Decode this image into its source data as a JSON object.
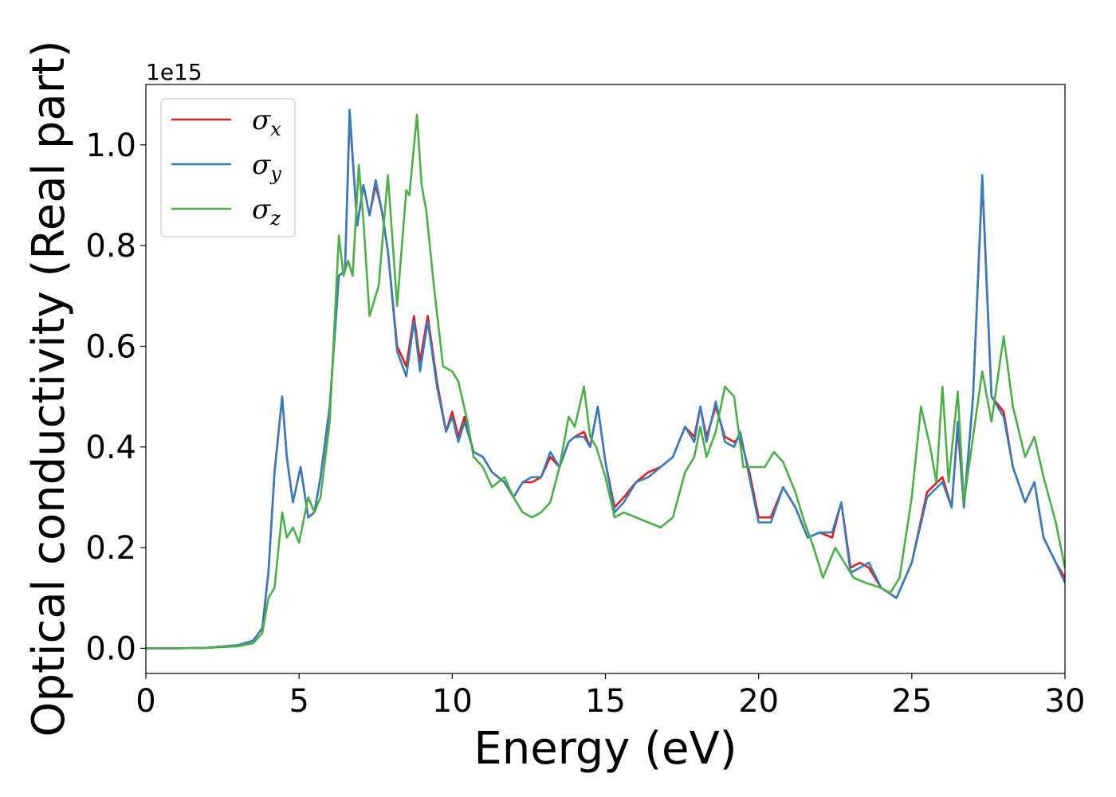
{
  "chart_data": {
    "type": "line",
    "title": "",
    "xlabel": "Energy (eV)",
    "ylabel": "Optical conductivity (Real part)",
    "y_offset_label": "1e15",
    "xlim": [
      0,
      30
    ],
    "ylim": [
      -0.05,
      1.12
    ],
    "xticks": [
      0,
      5,
      10,
      15,
      20,
      25,
      30
    ],
    "xtick_labels": [
      "0",
      "5",
      "10",
      "15",
      "20",
      "25",
      "30"
    ],
    "yticks": [
      0.0,
      0.2,
      0.4,
      0.6,
      0.8,
      1.0
    ],
    "ytick_labels": [
      "0.0",
      "0.2",
      "0.4",
      "0.6",
      "0.8",
      "1.0"
    ],
    "grid": false,
    "legend_position": "top-left",
    "series": [
      {
        "name": "σx",
        "base": "σ",
        "sub": "x",
        "color": "#e41a1c",
        "points": [
          [
            0,
            0
          ],
          [
            1,
            0
          ],
          [
            2,
            0.001
          ],
          [
            3,
            0.006
          ],
          [
            3.5,
            0.015
          ],
          [
            3.8,
            0.04
          ],
          [
            4.0,
            0.15
          ],
          [
            4.2,
            0.35
          ],
          [
            4.45,
            0.5
          ],
          [
            4.6,
            0.38
          ],
          [
            4.8,
            0.29
          ],
          [
            5.05,
            0.36
          ],
          [
            5.3,
            0.26
          ],
          [
            5.5,
            0.27
          ],
          [
            5.7,
            0.34
          ],
          [
            6.0,
            0.48
          ],
          [
            6.3,
            0.74
          ],
          [
            6.5,
            0.75
          ],
          [
            6.65,
            1.06
          ],
          [
            6.9,
            0.84
          ],
          [
            7.1,
            0.92
          ],
          [
            7.3,
            0.86
          ],
          [
            7.5,
            0.92
          ],
          [
            7.7,
            0.87
          ],
          [
            7.9,
            0.79
          ],
          [
            8.2,
            0.6
          ],
          [
            8.5,
            0.56
          ],
          [
            8.75,
            0.66
          ],
          [
            8.95,
            0.57
          ],
          [
            9.2,
            0.66
          ],
          [
            9.5,
            0.53
          ],
          [
            9.8,
            0.43
          ],
          [
            10.0,
            0.47
          ],
          [
            10.2,
            0.42
          ],
          [
            10.4,
            0.46
          ],
          [
            10.7,
            0.39
          ],
          [
            11.0,
            0.38
          ],
          [
            11.3,
            0.35
          ],
          [
            11.7,
            0.33
          ],
          [
            12.0,
            0.3
          ],
          [
            12.3,
            0.33
          ],
          [
            12.6,
            0.33
          ],
          [
            12.9,
            0.34
          ],
          [
            13.2,
            0.38
          ],
          [
            13.5,
            0.36
          ],
          [
            13.8,
            0.41
          ],
          [
            14.0,
            0.42
          ],
          [
            14.3,
            0.43
          ],
          [
            14.5,
            0.4
          ],
          [
            14.75,
            0.48
          ],
          [
            15.0,
            0.37
          ],
          [
            15.3,
            0.28
          ],
          [
            15.6,
            0.3
          ],
          [
            16.0,
            0.33
          ],
          [
            16.4,
            0.35
          ],
          [
            16.8,
            0.36
          ],
          [
            17.2,
            0.38
          ],
          [
            17.6,
            0.44
          ],
          [
            17.9,
            0.42
          ],
          [
            18.1,
            0.48
          ],
          [
            18.3,
            0.42
          ],
          [
            18.6,
            0.48
          ],
          [
            18.9,
            0.42
          ],
          [
            19.2,
            0.41
          ],
          [
            19.4,
            0.42
          ],
          [
            19.7,
            0.35
          ],
          [
            20.0,
            0.26
          ],
          [
            20.4,
            0.26
          ],
          [
            20.8,
            0.32
          ],
          [
            21.2,
            0.28
          ],
          [
            21.6,
            0.22
          ],
          [
            22.0,
            0.23
          ],
          [
            22.4,
            0.22
          ],
          [
            22.7,
            0.29
          ],
          [
            23.0,
            0.16
          ],
          [
            23.3,
            0.17
          ],
          [
            23.6,
            0.16
          ],
          [
            24.0,
            0.12
          ],
          [
            24.5,
            0.1
          ],
          [
            25.0,
            0.17
          ],
          [
            25.5,
            0.31
          ],
          [
            26.0,
            0.34
          ],
          [
            26.3,
            0.28
          ],
          [
            26.5,
            0.44
          ],
          [
            26.7,
            0.28
          ],
          [
            27.0,
            0.5
          ],
          [
            27.3,
            0.93
          ],
          [
            27.6,
            0.5
          ],
          [
            28.0,
            0.47
          ],
          [
            28.3,
            0.36
          ],
          [
            28.7,
            0.29
          ],
          [
            29.0,
            0.33
          ],
          [
            29.3,
            0.22
          ],
          [
            29.7,
            0.17
          ],
          [
            30,
            0.14
          ]
        ]
      },
      {
        "name": "σy",
        "base": "σ",
        "sub": "y",
        "color": "#377eb8",
        "points": [
          [
            0,
            0
          ],
          [
            1,
            0
          ],
          [
            2,
            0.001
          ],
          [
            3,
            0.006
          ],
          [
            3.5,
            0.015
          ],
          [
            3.8,
            0.04
          ],
          [
            4.0,
            0.15
          ],
          [
            4.2,
            0.35
          ],
          [
            4.45,
            0.5
          ],
          [
            4.6,
            0.38
          ],
          [
            4.8,
            0.29
          ],
          [
            5.05,
            0.36
          ],
          [
            5.3,
            0.26
          ],
          [
            5.5,
            0.27
          ],
          [
            5.7,
            0.34
          ],
          [
            6.0,
            0.48
          ],
          [
            6.3,
            0.74
          ],
          [
            6.5,
            0.75
          ],
          [
            6.65,
            1.07
          ],
          [
            6.9,
            0.84
          ],
          [
            7.1,
            0.92
          ],
          [
            7.3,
            0.86
          ],
          [
            7.5,
            0.93
          ],
          [
            7.7,
            0.87
          ],
          [
            7.9,
            0.79
          ],
          [
            8.2,
            0.59
          ],
          [
            8.5,
            0.54
          ],
          [
            8.75,
            0.65
          ],
          [
            8.95,
            0.55
          ],
          [
            9.2,
            0.65
          ],
          [
            9.5,
            0.52
          ],
          [
            9.8,
            0.43
          ],
          [
            10.0,
            0.46
          ],
          [
            10.2,
            0.41
          ],
          [
            10.4,
            0.45
          ],
          [
            10.7,
            0.39
          ],
          [
            11.0,
            0.38
          ],
          [
            11.3,
            0.35
          ],
          [
            11.7,
            0.33
          ],
          [
            12.0,
            0.3
          ],
          [
            12.3,
            0.33
          ],
          [
            12.6,
            0.34
          ],
          [
            12.9,
            0.34
          ],
          [
            13.2,
            0.39
          ],
          [
            13.5,
            0.36
          ],
          [
            13.8,
            0.41
          ],
          [
            14.0,
            0.42
          ],
          [
            14.3,
            0.42
          ],
          [
            14.5,
            0.4
          ],
          [
            14.75,
            0.48
          ],
          [
            15.0,
            0.37
          ],
          [
            15.3,
            0.27
          ],
          [
            15.6,
            0.29
          ],
          [
            16.0,
            0.33
          ],
          [
            16.4,
            0.34
          ],
          [
            16.8,
            0.36
          ],
          [
            17.2,
            0.38
          ],
          [
            17.6,
            0.44
          ],
          [
            17.9,
            0.41
          ],
          [
            18.1,
            0.48
          ],
          [
            18.3,
            0.41
          ],
          [
            18.6,
            0.49
          ],
          [
            18.9,
            0.41
          ],
          [
            19.2,
            0.4
          ],
          [
            19.4,
            0.43
          ],
          [
            19.7,
            0.34
          ],
          [
            20.0,
            0.25
          ],
          [
            20.4,
            0.25
          ],
          [
            20.8,
            0.32
          ],
          [
            21.2,
            0.28
          ],
          [
            21.6,
            0.22
          ],
          [
            22.0,
            0.23
          ],
          [
            22.4,
            0.23
          ],
          [
            22.7,
            0.29
          ],
          [
            23.0,
            0.15
          ],
          [
            23.3,
            0.16
          ],
          [
            23.6,
            0.17
          ],
          [
            24.0,
            0.12
          ],
          [
            24.5,
            0.1
          ],
          [
            25.0,
            0.17
          ],
          [
            25.5,
            0.3
          ],
          [
            26.0,
            0.33
          ],
          [
            26.3,
            0.28
          ],
          [
            26.5,
            0.45
          ],
          [
            26.7,
            0.28
          ],
          [
            27.0,
            0.5
          ],
          [
            27.3,
            0.94
          ],
          [
            27.6,
            0.5
          ],
          [
            28.0,
            0.46
          ],
          [
            28.3,
            0.36
          ],
          [
            28.7,
            0.29
          ],
          [
            29.0,
            0.33
          ],
          [
            29.3,
            0.22
          ],
          [
            29.7,
            0.17
          ],
          [
            30,
            0.13
          ]
        ]
      },
      {
        "name": "σz",
        "base": "σ",
        "sub": "z",
        "color": "#4daf4a",
        "points": [
          [
            0,
            0
          ],
          [
            1,
            0
          ],
          [
            2,
            0.001
          ],
          [
            3,
            0.004
          ],
          [
            3.5,
            0.01
          ],
          [
            3.8,
            0.03
          ],
          [
            4.0,
            0.1
          ],
          [
            4.2,
            0.12
          ],
          [
            4.45,
            0.27
          ],
          [
            4.6,
            0.22
          ],
          [
            4.8,
            0.24
          ],
          [
            5.0,
            0.21
          ],
          [
            5.3,
            0.3
          ],
          [
            5.5,
            0.27
          ],
          [
            5.7,
            0.3
          ],
          [
            6.0,
            0.45
          ],
          [
            6.3,
            0.82
          ],
          [
            6.45,
            0.74
          ],
          [
            6.6,
            0.77
          ],
          [
            6.75,
            0.74
          ],
          [
            6.95,
            0.96
          ],
          [
            7.1,
            0.85
          ],
          [
            7.3,
            0.66
          ],
          [
            7.6,
            0.72
          ],
          [
            7.9,
            0.94
          ],
          [
            8.2,
            0.68
          ],
          [
            8.5,
            0.91
          ],
          [
            8.6,
            0.9
          ],
          [
            8.85,
            1.06
          ],
          [
            9.0,
            0.92
          ],
          [
            9.15,
            0.87
          ],
          [
            9.4,
            0.72
          ],
          [
            9.7,
            0.56
          ],
          [
            10.0,
            0.55
          ],
          [
            10.2,
            0.53
          ],
          [
            10.5,
            0.45
          ],
          [
            10.7,
            0.38
          ],
          [
            11.0,
            0.36
          ],
          [
            11.3,
            0.32
          ],
          [
            11.7,
            0.34
          ],
          [
            12.0,
            0.3
          ],
          [
            12.3,
            0.27
          ],
          [
            12.6,
            0.26
          ],
          [
            12.9,
            0.27
          ],
          [
            13.2,
            0.29
          ],
          [
            13.5,
            0.36
          ],
          [
            13.8,
            0.46
          ],
          [
            14.0,
            0.44
          ],
          [
            14.3,
            0.52
          ],
          [
            14.5,
            0.42
          ],
          [
            14.7,
            0.4
          ],
          [
            15.0,
            0.34
          ],
          [
            15.3,
            0.26
          ],
          [
            15.6,
            0.27
          ],
          [
            16.0,
            0.26
          ],
          [
            16.4,
            0.25
          ],
          [
            16.8,
            0.24
          ],
          [
            17.2,
            0.26
          ],
          [
            17.6,
            0.35
          ],
          [
            17.9,
            0.38
          ],
          [
            18.1,
            0.44
          ],
          [
            18.3,
            0.38
          ],
          [
            18.6,
            0.43
          ],
          [
            18.9,
            0.52
          ],
          [
            19.2,
            0.5
          ],
          [
            19.5,
            0.36
          ],
          [
            19.8,
            0.36
          ],
          [
            20.2,
            0.36
          ],
          [
            20.5,
            0.39
          ],
          [
            20.8,
            0.37
          ],
          [
            21.2,
            0.31
          ],
          [
            21.5,
            0.25
          ],
          [
            21.8,
            0.2
          ],
          [
            22.1,
            0.14
          ],
          [
            22.5,
            0.2
          ],
          [
            22.8,
            0.17
          ],
          [
            23.1,
            0.14
          ],
          [
            23.5,
            0.13
          ],
          [
            24.0,
            0.12
          ],
          [
            24.3,
            0.11
          ],
          [
            24.6,
            0.14
          ],
          [
            25.0,
            0.3
          ],
          [
            25.3,
            0.48
          ],
          [
            25.6,
            0.4
          ],
          [
            25.8,
            0.33
          ],
          [
            26.0,
            0.52
          ],
          [
            26.2,
            0.33
          ],
          [
            26.5,
            0.51
          ],
          [
            26.7,
            0.29
          ],
          [
            27.0,
            0.42
          ],
          [
            27.3,
            0.55
          ],
          [
            27.6,
            0.45
          ],
          [
            28.0,
            0.62
          ],
          [
            28.3,
            0.48
          ],
          [
            28.7,
            0.38
          ],
          [
            29.0,
            0.42
          ],
          [
            29.3,
            0.34
          ],
          [
            29.7,
            0.25
          ],
          [
            30,
            0.16
          ]
        ]
      }
    ]
  }
}
